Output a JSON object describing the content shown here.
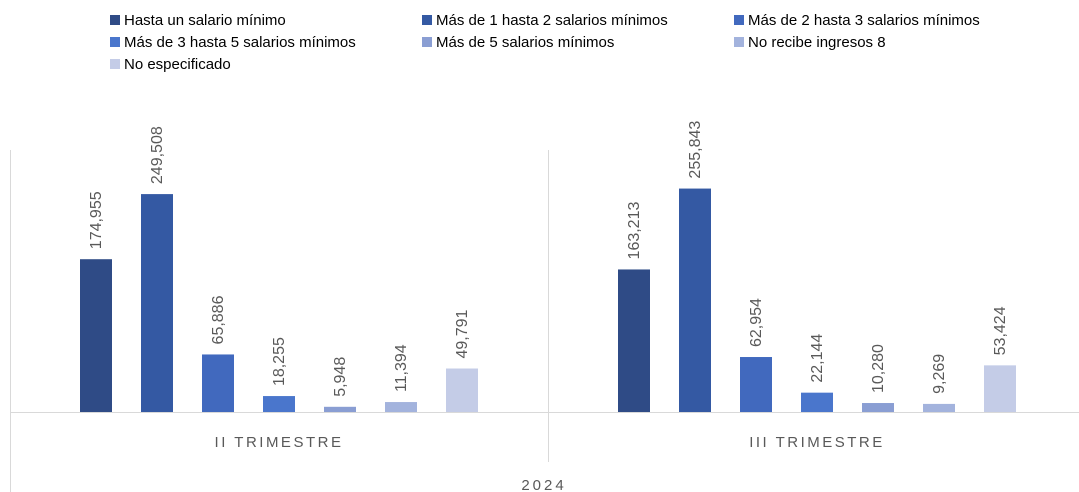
{
  "chart_data": {
    "type": "bar",
    "categories": [
      "II TRIMESTRE",
      "III TRIMESTRE"
    ],
    "group_label": "2024",
    "ylim": [
      0,
      300000
    ],
    "series": [
      {
        "name": "Hasta un salario mínimo",
        "color": "#2f4b86",
        "values": [
          174955,
          163213
        ],
        "value_labels": [
          "174,955",
          "163,213"
        ]
      },
      {
        "name": "Más de 1 hasta 2 salarios mínimos",
        "color": "#3459a3",
        "values": [
          249508,
          255843
        ],
        "value_labels": [
          "249,508",
          "255,843"
        ]
      },
      {
        "name": "Más de 2 hasta 3 salarios mínimos",
        "color": "#4169be",
        "values": [
          65886,
          62954
        ],
        "value_labels": [
          "65,886",
          "62,954"
        ]
      },
      {
        "name": "Más de 3 hasta 5 salarios mínimos",
        "color": "#4a76cc",
        "values": [
          18255,
          22144
        ],
        "value_labels": [
          "18,255",
          "22,144"
        ]
      },
      {
        "name": "Más de 5 salarios mínimos",
        "color": "#8a9ed3",
        "values": [
          5948,
          10280
        ],
        "value_labels": [
          "5,948",
          "10,280"
        ]
      },
      {
        "name": "No recibe ingresos 8",
        "color": "#a3b3dd",
        "values": [
          11394,
          9269
        ],
        "value_labels": [
          "11,394",
          "9,269"
        ]
      },
      {
        "name": "No especificado",
        "color": "#c4cce7",
        "values": [
          49791,
          53424
        ],
        "value_labels": [
          "49,791",
          "53,424"
        ]
      }
    ]
  }
}
